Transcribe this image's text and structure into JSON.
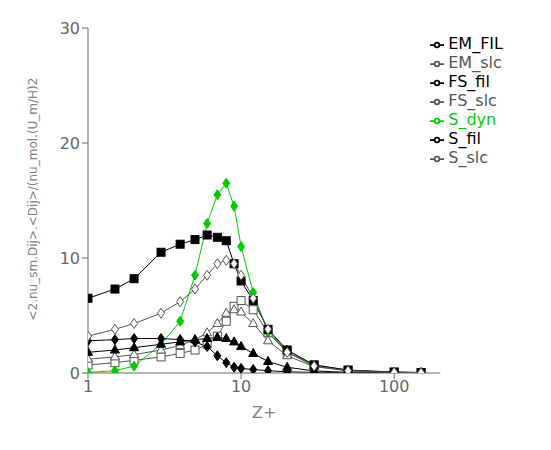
{
  "chart_data": {
    "type": "line",
    "title": "",
    "xlabel": "Z+",
    "ylabel": "<2.nu_sm.Dij>.<Dij>/(nu_mol.(U_m/H)2",
    "log": "x",
    "xlim": [
      1,
      200
    ],
    "xticks": [
      1,
      10,
      100
    ],
    "ylim": [
      0.0,
      30.0
    ],
    "yticks": [
      0.0,
      10.0,
      20.0,
      30.0
    ],
    "grid": false,
    "legend": "upper right",
    "x": [
      1,
      1.5,
      2,
      3,
      4,
      5,
      6,
      7,
      8,
      9,
      10,
      12,
      15,
      20,
      30,
      50,
      100,
      150
    ],
    "series": [
      {
        "name": "EM_slc",
        "color": "#555555",
        "marker": "square-open",
        "values": [
          0.7,
          0.9,
          1.1,
          1.4,
          1.7,
          2.0,
          2.5,
          3.2,
          4.5,
          5.8,
          6.3,
          5.5,
          3.5,
          1.8,
          0.7,
          0.25,
          0.08,
          0.04
        ]
      },
      {
        "name": "S_dyn",
        "color": "#00cc00",
        "marker": "diamond",
        "values": [
          0.05,
          0.2,
          0.6,
          2.5,
          4.5,
          8.5,
          13.0,
          15.5,
          16.5,
          14.5,
          11.0,
          7.0,
          3.5,
          2.0,
          0.6,
          0.2,
          0.06,
          0.03
        ]
      },
      {
        "name": "S_fil",
        "color": "#000000",
        "marker": "diamond",
        "values": [
          2.8,
          2.9,
          3.0,
          3.0,
          2.9,
          2.7,
          2.3,
          1.5,
          0.9,
          0.5,
          0.4,
          0.3,
          0.2,
          0.1,
          0.06,
          0.03,
          0.01,
          0.005
        ]
      },
      {
        "name": "FS_slc",
        "color": "#555555",
        "marker": "triangle-open",
        "values": [
          1.2,
          1.4,
          1.6,
          2.0,
          2.4,
          2.9,
          3.5,
          4.3,
          5.2,
          5.5,
          5.3,
          4.3,
          2.8,
          1.5,
          0.55,
          0.2,
          0.06,
          0.03
        ]
      },
      {
        "name": "EM_FIL",
        "color": "#000000",
        "marker": "square",
        "values": [
          6.5,
          7.3,
          8.2,
          10.5,
          11.2,
          11.6,
          12.0,
          11.8,
          11.5,
          9.5,
          8.0,
          6.3,
          3.8,
          2.0,
          0.7,
          0.25,
          0.08,
          0.04
        ]
      },
      {
        "name": "FS_fil",
        "color": "#000000",
        "marker": "triangle",
        "values": [
          1.8,
          2.0,
          2.2,
          2.5,
          2.7,
          2.9,
          3.0,
          3.1,
          3.0,
          2.7,
          2.3,
          1.7,
          1.0,
          0.5,
          0.18,
          0.06,
          0.02,
          0.01
        ]
      },
      {
        "name": "S_slc",
        "color": "#555555",
        "marker": "diamond-open",
        "values": [
          3.2,
          3.8,
          4.3,
          5.2,
          6.2,
          7.3,
          8.5,
          9.5,
          9.8,
          9.5,
          8.5,
          6.5,
          3.8,
          1.8,
          0.6,
          0.2,
          0.06,
          0.03
        ]
      }
    ]
  }
}
